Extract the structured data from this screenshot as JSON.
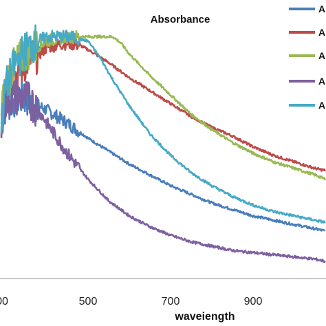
{
  "chart_data": {
    "type": "line",
    "title": "Absorbance",
    "xlabel": "waveiength",
    "ylabel": "",
    "x_ticks": [
      "00",
      "500",
      "700",
      "900"
    ],
    "xlim": [
      290,
      1075
    ],
    "ylim": [
      0,
      1.2
    ],
    "grid": false,
    "legend_position": "right",
    "series": [
      {
        "name": "A",
        "color": "#4a7ebb",
        "x": [
          290,
          300,
          320,
          340,
          360,
          380,
          400,
          450,
          500,
          550,
          600,
          650,
          700,
          750,
          800,
          850,
          900,
          950,
          1000,
          1050,
          1075
        ],
        "y": [
          0.72,
          0.8,
          0.83,
          0.84,
          0.83,
          0.8,
          0.78,
          0.72,
          0.65,
          0.59,
          0.53,
          0.48,
          0.43,
          0.39,
          0.35,
          0.32,
          0.29,
          0.27,
          0.25,
          0.23,
          0.22
        ]
      },
      {
        "name": "A",
        "color": "#be4b48",
        "x": [
          290,
          300,
          320,
          340,
          360,
          380,
          400,
          420,
          450,
          480,
          500,
          550,
          600,
          650,
          700,
          750,
          800,
          850,
          900,
          950,
          1000,
          1050,
          1075
        ],
        "y": [
          0.74,
          0.88,
          0.93,
          0.98,
          1.02,
          1.04,
          1.07,
          1.08,
          1.09,
          1.08,
          1.06,
          1.0,
          0.93,
          0.87,
          0.81,
          0.75,
          0.7,
          0.66,
          0.61,
          0.57,
          0.54,
          0.51,
          0.5
        ]
      },
      {
        "name": "A",
        "color": "#98b954",
        "x": [
          290,
          300,
          320,
          340,
          360,
          380,
          400,
          450,
          500,
          560,
          580,
          600,
          650,
          700,
          750,
          800,
          850,
          900,
          950,
          1000,
          1050,
          1075
        ],
        "y": [
          0.76,
          0.9,
          0.98,
          1.03,
          1.06,
          1.08,
          1.1,
          1.12,
          1.12,
          1.12,
          1.09,
          1.04,
          0.94,
          0.85,
          0.76,
          0.69,
          0.63,
          0.58,
          0.54,
          0.51,
          0.48,
          0.46
        ]
      },
      {
        "name": "A",
        "color": "#7d60a0",
        "x": [
          290,
          300,
          320,
          340,
          360,
          380,
          400,
          450,
          500,
          550,
          600,
          650,
          700,
          750,
          800,
          850,
          900,
          950,
          1000,
          1050,
          1075
        ],
        "y": [
          0.74,
          0.82,
          0.84,
          0.84,
          0.82,
          0.78,
          0.72,
          0.58,
          0.46,
          0.36,
          0.29,
          0.24,
          0.2,
          0.17,
          0.15,
          0.13,
          0.12,
          0.11,
          0.1,
          0.09,
          0.08
        ]
      },
      {
        "name": "A",
        "color": "#46aac5",
        "x": [
          290,
          300,
          320,
          340,
          360,
          380,
          400,
          450,
          500,
          530,
          560,
          600,
          650,
          700,
          750,
          800,
          850,
          900,
          950,
          1000,
          1050,
          1075
        ],
        "y": [
          0.72,
          0.88,
          0.98,
          1.04,
          1.08,
          1.1,
          1.12,
          1.12,
          1.1,
          1.02,
          0.92,
          0.8,
          0.67,
          0.57,
          0.49,
          0.43,
          0.38,
          0.34,
          0.31,
          0.29,
          0.27,
          0.26
        ]
      }
    ]
  }
}
